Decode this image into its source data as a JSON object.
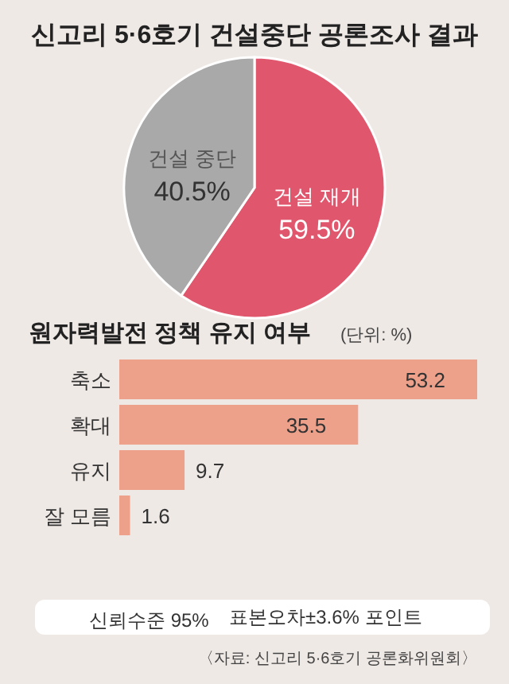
{
  "chart_data": [
    {
      "type": "pie",
      "title": "신고리 5·6호기 건설중단 공론조사 결과",
      "categories": [
        "건설 재개",
        "건설 중단"
      ],
      "values": [
        59.5,
        40.5
      ],
      "value_labels": [
        "59.5%",
        "40.5%"
      ],
      "colors": [
        "#e0566c",
        "#a9a9a9"
      ]
    },
    {
      "type": "bar",
      "orientation": "horizontal",
      "title": "원자력발전 정책 유지 여부",
      "subtitle": "(단위: %)",
      "categories": [
        "축소",
        "확대",
        "유지",
        "잘 모름"
      ],
      "values": [
        53.2,
        35.5,
        9.7,
        1.6
      ],
      "color": "#eda08a",
      "data_labels": true,
      "annotations": [
        "신뢰수준 95%",
        "표본오차±3.6% 포인트",
        "〈자료: 신고리 5·6호기 공론화위원회〉"
      ]
    }
  ]
}
